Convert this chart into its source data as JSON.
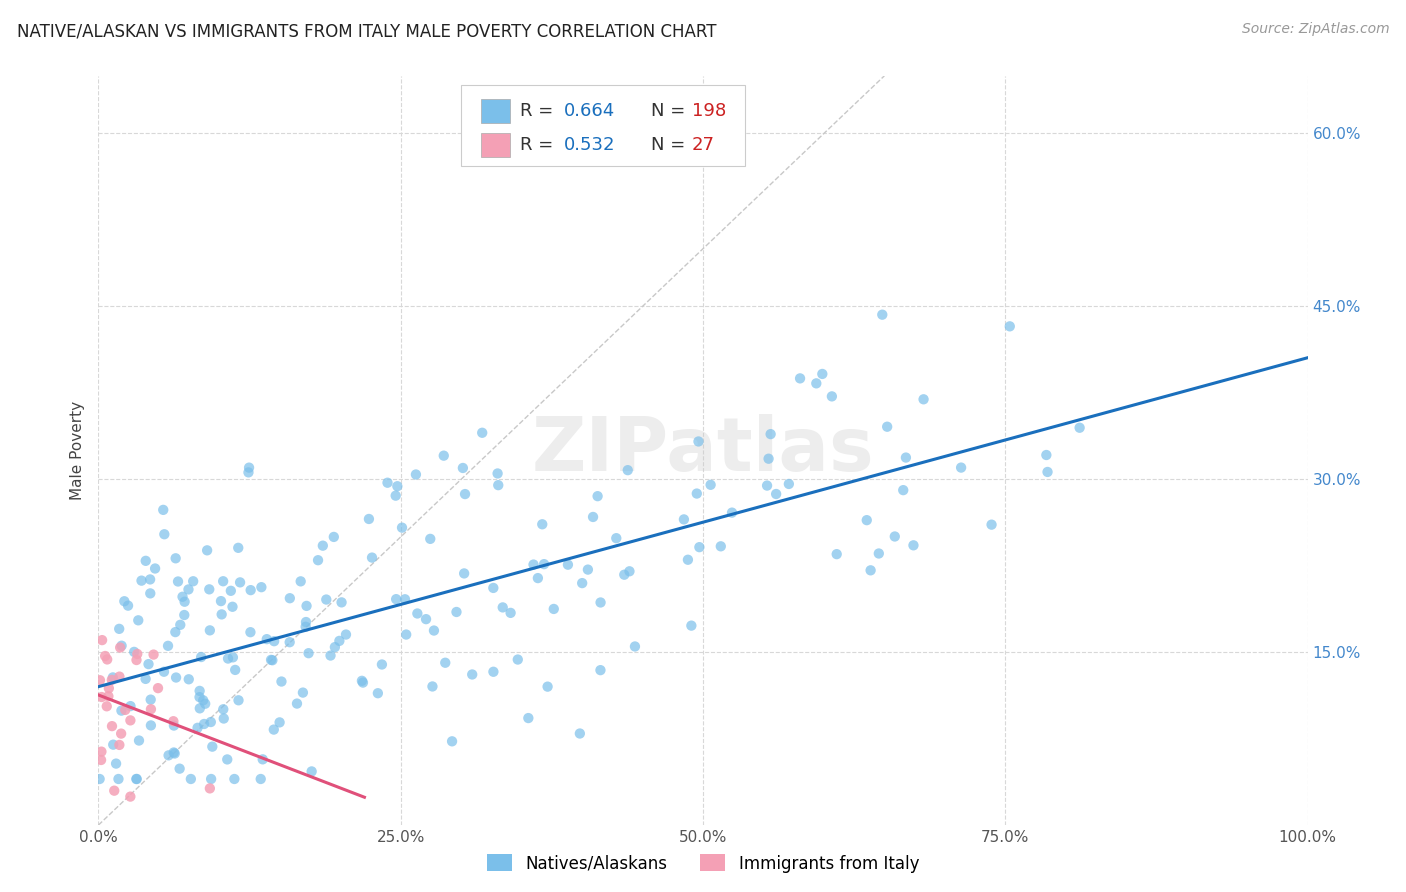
{
  "title": "NATIVE/ALASKAN VS IMMIGRANTS FROM ITALY MALE POVERTY CORRELATION CHART",
  "source": "Source: ZipAtlas.com",
  "ylabel": "Male Poverty",
  "ytick_labels": [
    "15.0%",
    "30.0%",
    "45.0%",
    "60.0%"
  ],
  "ytick_values": [
    0.15,
    0.3,
    0.45,
    0.6
  ],
  "xtick_labels": [
    "0.0%",
    "25.0%",
    "50.0%",
    "75.0%",
    "100.0%"
  ],
  "xtick_values": [
    0.0,
    0.25,
    0.5,
    0.75,
    1.0
  ],
  "xlim": [
    0.0,
    1.0
  ],
  "ylim": [
    0.0,
    0.65
  ],
  "blue_R": "0.664",
  "blue_N": "198",
  "pink_R": "0.532",
  "pink_N": "27",
  "blue_color": "#7bbfea",
  "pink_color": "#f4a0b5",
  "blue_line_color": "#1a6fbd",
  "pink_line_color": "#e0507a",
  "diagonal_color": "#c8c8c8",
  "legend_label_blue": "Natives/Alaskans",
  "legend_label_pink": "Immigrants from Italy",
  "watermark": "ZIPatlas",
  "background_color": "#ffffff",
  "grid_color": "#d8d8d8",
  "title_fontsize": 12,
  "axis_fontsize": 11,
  "tick_fontsize": 11,
  "source_fontsize": 10,
  "legend_R_color": "#1a6fbd",
  "legend_N_color": "#cc2222",
  "legend_text_color": "#333333",
  "ytick_color": "#4488cc"
}
